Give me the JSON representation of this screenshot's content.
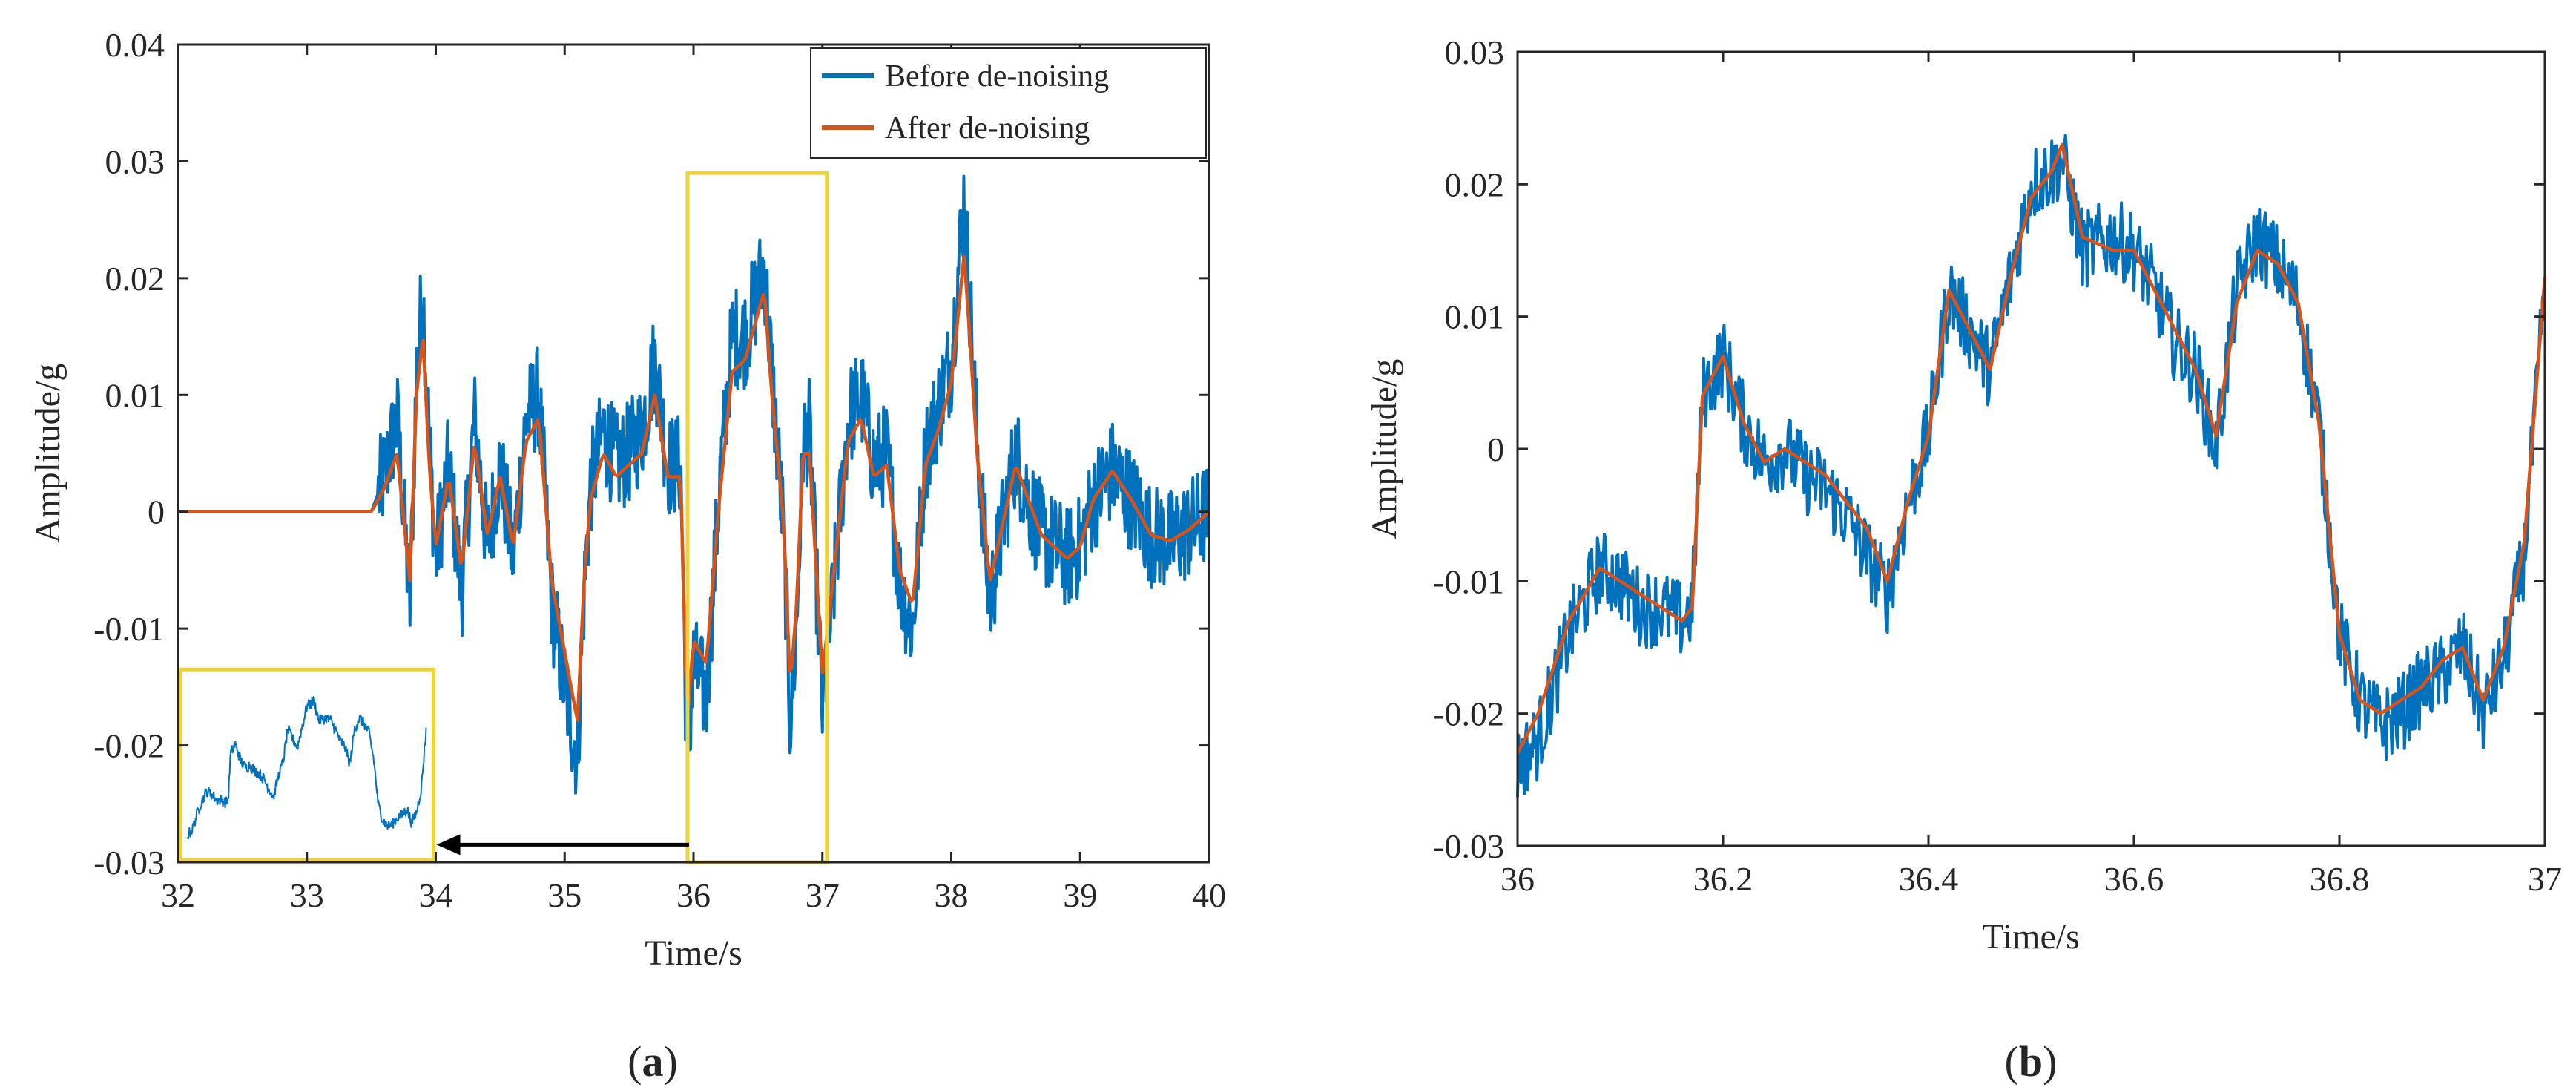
{
  "figure": {
    "caption_a_open": "(",
    "caption_a_letter": "a",
    "caption_a_close": ")",
    "caption_b_open": "(",
    "caption_b_letter": "b",
    "caption_b_close": ")"
  },
  "colors": {
    "before": "#0072BD",
    "after": "#D95319",
    "highlight": "#EDD23A",
    "axis": "#262626"
  },
  "chart_data": [
    {
      "panel": "a",
      "type": "line",
      "xlabel": "Time/s",
      "ylabel": "Amplitude/g",
      "xlim": [
        32,
        40
      ],
      "ylim": [
        -0.03,
        0.04
      ],
      "xticks": [
        32,
        33,
        34,
        35,
        36,
        37,
        38,
        39,
        40
      ],
      "xtick_labels": [
        "32",
        "33",
        "34",
        "35",
        "36",
        "37",
        "38",
        "39",
        "40"
      ],
      "yticks": [
        -0.03,
        -0.02,
        -0.01,
        0,
        0.01,
        0.02,
        0.03,
        0.04
      ],
      "ytick_labels": [
        "-0.03",
        "-0.02",
        "-0.01",
        "0",
        "0.01",
        "0.02",
        "0.03",
        "0.04"
      ],
      "legend_position": "top-right",
      "series": [
        {
          "name": "Before de-noising",
          "color": "#0072BD",
          "x": [
            32,
            33.4,
            33.5,
            33.6,
            33.7,
            33.8,
            33.85,
            33.9,
            33.95,
            34,
            34.1,
            34.2,
            34.3,
            34.4,
            34.5,
            34.6,
            34.7,
            34.8,
            34.9,
            35,
            35.1,
            35.15,
            35.2,
            35.3,
            35.4,
            35.5,
            35.6,
            35.7,
            35.8,
            35.9,
            35.95,
            36,
            36.1,
            36.2,
            36.3,
            36.4,
            36.5,
            36.55,
            36.6,
            36.7,
            36.75,
            36.8,
            36.85,
            36.9,
            37,
            37.1,
            37.2,
            37.3,
            37.4,
            37.5,
            37.6,
            37.7,
            37.8,
            37.9,
            38,
            38.1,
            38.15,
            38.2,
            38.3,
            38.4,
            38.5,
            38.6,
            38.7,
            38.8,
            38.9,
            39,
            39.1,
            39.25,
            39.4,
            39.55,
            39.7,
            39.85,
            40
          ],
          "y": [
            0,
            0,
            0,
            0.003,
            0.008,
            -0.008,
            0.012,
            0.019,
            0.006,
            -0.004,
            0.004,
            -0.007,
            0.008,
            -0.003,
            0.004,
            -0.004,
            0.008,
            0.01,
            -0.008,
            -0.015,
            -0.021,
            -0.007,
            0.002,
            0.007,
            0.004,
            0.005,
            0.007,
            0.013,
            0.004,
            0.004,
            -0.022,
            -0.013,
            -0.016,
            0.002,
            0.015,
            0.015,
            0.019,
            0.021,
            0.013,
            -0.002,
            -0.018,
            -0.01,
            0.006,
            0.007,
            -0.017,
            -0.005,
            0.008,
            0.01,
            0.004,
            0.005,
            -0.006,
            -0.01,
            0.005,
            0.009,
            0.013,
            0.027,
            0.017,
            0.006,
            -0.008,
            -0.001,
            0.005,
            0.001,
            -0.002,
            -0.003,
            -0.004,
            -0.003,
            0.001,
            0.0035,
            0.001,
            -0.002,
            -0.0025,
            -0.0015,
            0
          ]
        },
        {
          "name": "After de-noising",
          "color": "#D95319",
          "x": [
            32,
            33.4,
            33.5,
            33.6,
            33.7,
            33.8,
            33.85,
            33.9,
            33.95,
            34,
            34.1,
            34.2,
            34.3,
            34.4,
            34.5,
            34.6,
            34.7,
            34.8,
            34.9,
            35,
            35.1,
            35.15,
            35.2,
            35.3,
            35.4,
            35.5,
            35.6,
            35.7,
            35.8,
            35.9,
            35.95,
            36,
            36.1,
            36.2,
            36.3,
            36.4,
            36.5,
            36.55,
            36.6,
            36.7,
            36.75,
            36.8,
            36.85,
            36.9,
            37,
            37.1,
            37.2,
            37.3,
            37.4,
            37.5,
            37.6,
            37.7,
            37.8,
            37.9,
            38,
            38.1,
            38.15,
            38.2,
            38.3,
            38.4,
            38.5,
            38.6,
            38.7,
            38.8,
            38.9,
            39,
            39.1,
            39.25,
            39.4,
            39.55,
            39.7,
            39.85,
            40
          ],
          "y": [
            0,
            0,
            0,
            0.002,
            0.005,
            -0.006,
            0.01,
            0.015,
            0.004,
            -0.003,
            0.003,
            -0.005,
            0.006,
            -0.002,
            0.003,
            -0.003,
            0.006,
            0.008,
            -0.006,
            -0.012,
            -0.018,
            -0.006,
            0.001,
            0.005,
            0.003,
            0.004,
            0.005,
            0.01,
            0.003,
            0.003,
            -0.018,
            -0.011,
            -0.013,
            0.001,
            0.012,
            0.013,
            0.017,
            0.019,
            0.011,
            -0.001,
            -0.015,
            -0.008,
            0.005,
            0.005,
            -0.014,
            -0.004,
            0.006,
            0.008,
            0.003,
            0.004,
            -0.005,
            -0.008,
            0.004,
            0.007,
            0.011,
            0.022,
            0.014,
            0.005,
            -0.006,
            -0.001,
            0.004,
            0.001,
            -0.002,
            -0.003,
            -0.004,
            -0.003,
            0.001,
            0.0035,
            0.001,
            -0.002,
            -0.0025,
            -0.0015,
            0
          ]
        }
      ],
      "annotations": {
        "highlight_range": [
          36,
          37
        ],
        "inset_target_range": [
          32,
          34
        ],
        "arrow_from_x": 36,
        "arrow_to_x": 34,
        "arrow_y": -0.0285
      }
    },
    {
      "panel": "b",
      "type": "line",
      "xlabel": "Time/s",
      "ylabel": "Amplitude/g",
      "xlim": [
        36,
        37
      ],
      "ylim": [
        -0.03,
        0.03
      ],
      "xticks": [
        36,
        36.2,
        36.4,
        36.6,
        36.8,
        37
      ],
      "xtick_labels": [
        "36",
        "36.2",
        "36.4",
        "36.6",
        "36.8",
        "37"
      ],
      "yticks": [
        -0.03,
        -0.02,
        -0.01,
        0,
        0.01,
        0.02,
        0.03
      ],
      "ytick_labels": [
        "-0.03",
        "-0.02",
        "-0.01",
        "0",
        "0.01",
        "0.02",
        "0.03"
      ],
      "series": [
        {
          "name": "Before de-noising",
          "color": "#0072BD",
          "x": [
            36,
            36.02,
            36.05,
            36.08,
            36.1,
            36.12,
            36.14,
            36.16,
            36.17,
            36.18,
            36.2,
            36.22,
            36.24,
            36.26,
            36.28,
            36.3,
            36.32,
            36.34,
            36.36,
            36.38,
            36.4,
            36.42,
            36.44,
            36.46,
            36.48,
            36.5,
            36.52,
            36.53,
            36.55,
            36.58,
            36.6,
            36.62,
            36.64,
            36.66,
            36.68,
            36.7,
            36.72,
            36.74,
            36.76,
            36.78,
            36.8,
            36.82,
            36.84,
            36.86,
            36.88,
            36.9,
            36.92,
            36.94,
            36.96,
            36.98,
            37
          ],
          "y": [
            -0.024,
            -0.022,
            -0.014,
            -0.009,
            -0.01,
            -0.012,
            -0.012,
            -0.013,
            -0.012,
            0.004,
            0.007,
            0.002,
            -0.001,
            0,
            -0.002,
            -0.003,
            -0.005,
            -0.008,
            -0.011,
            -0.004,
            0.001,
            0.012,
            0.009,
            0.006,
            0.013,
            0.02,
            0.021,
            0.022,
            0.015,
            0.016,
            0.015,
            0.012,
            0.008,
            0.006,
            0,
            0.012,
            0.016,
            0.014,
            0.011,
            0.002,
            -0.014,
            -0.019,
            -0.021,
            -0.02,
            -0.018,
            -0.017,
            -0.015,
            -0.02,
            -0.016,
            -0.008,
            0.012
          ]
        },
        {
          "name": "After de-noising",
          "color": "#D95319",
          "x": [
            36,
            36.02,
            36.05,
            36.08,
            36.1,
            36.12,
            36.14,
            36.16,
            36.17,
            36.18,
            36.2,
            36.22,
            36.24,
            36.26,
            36.28,
            36.3,
            36.32,
            36.34,
            36.36,
            36.38,
            36.4,
            36.42,
            36.44,
            36.46,
            36.48,
            36.5,
            36.52,
            36.53,
            36.55,
            36.58,
            36.6,
            36.62,
            36.64,
            36.66,
            36.68,
            36.7,
            36.72,
            36.74,
            36.76,
            36.78,
            36.8,
            36.82,
            36.84,
            36.86,
            36.88,
            36.9,
            36.92,
            36.94,
            36.96,
            36.98,
            37
          ],
          "y": [
            -0.023,
            -0.02,
            -0.013,
            -0.009,
            -0.01,
            -0.011,
            -0.012,
            -0.013,
            -0.012,
            0.004,
            0.007,
            0.002,
            -0.001,
            0,
            -0.001,
            -0.002,
            -0.004,
            -0.006,
            -0.01,
            -0.004,
            0.001,
            0.012,
            0.009,
            0.006,
            0.013,
            0.019,
            0.021,
            0.023,
            0.016,
            0.015,
            0.015,
            0.012,
            0.009,
            0.006,
            0.001,
            0.011,
            0.015,
            0.014,
            0.011,
            0.002,
            -0.014,
            -0.019,
            -0.02,
            -0.019,
            -0.018,
            -0.016,
            -0.015,
            -0.019,
            -0.015,
            -0.007,
            0.013
          ]
        }
      ]
    }
  ]
}
